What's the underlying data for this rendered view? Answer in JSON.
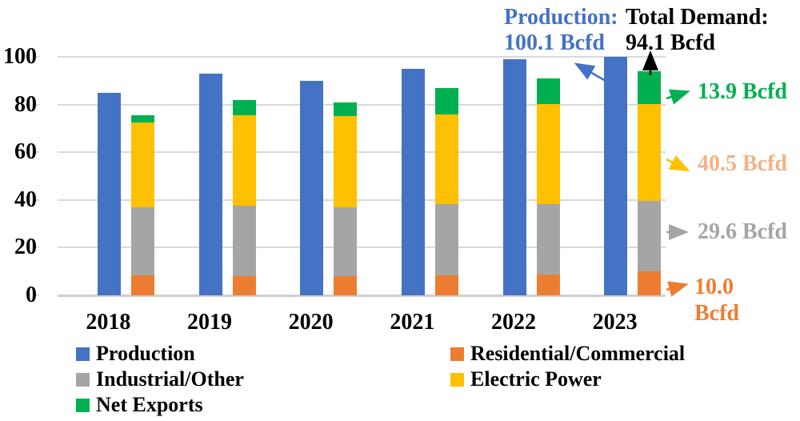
{
  "chart_data": {
    "type": "bar",
    "subtype": "clustered production bar vs stacked demand bar per year",
    "title": "",
    "xlabel": "",
    "ylabel": "",
    "unit": "Bcfd",
    "categories": [
      "2018",
      "2019",
      "2020",
      "2021",
      "2022",
      "2023"
    ],
    "series": [
      {
        "name": "Production",
        "role": "standalone-bar",
        "color": "#4472C4",
        "values": [
          85,
          93,
          90,
          95,
          99,
          100.1
        ]
      },
      {
        "name": "Residential/Commercial",
        "role": "stack-bottom",
        "color": "#ED7D31",
        "values": [
          8.4,
          8.2,
          8.0,
          8.5,
          8.7,
          10.0
        ]
      },
      {
        "name": "Industrial/Other",
        "role": "stack",
        "color": "#A5A5A5",
        "values": [
          28.5,
          29.3,
          28.9,
          29.9,
          29.7,
          29.6
        ]
      },
      {
        "name": "Electric Power",
        "role": "stack",
        "color": "#FFC000",
        "values": [
          35.6,
          38.0,
          38.2,
          37.3,
          41.8,
          40.5
        ]
      },
      {
        "name": "Net Exports",
        "role": "stack-top",
        "color": "#00B050",
        "values": [
          2.9,
          6.5,
          5.9,
          11.2,
          10.8,
          13.9
        ]
      }
    ],
    "ylim": [
      0,
      100
    ],
    "yticks": [
      "0",
      "20",
      "40",
      "60",
      "80",
      "100"
    ],
    "grid": "horizontal",
    "legend_position": "bottom-two-columns"
  },
  "annotations": {
    "production": {
      "line1": "Production:",
      "line2": "100.1 Bcfd",
      "color": "#4472C4"
    },
    "total_demand": {
      "line1": "Total Demand:",
      "line2": "94.1 Bcfd",
      "color": "#000000"
    },
    "net_exports": {
      "text": "13.9 Bcfd",
      "color": "#00B050",
      "arrow_color": "#00B050"
    },
    "electric_power": {
      "text": "40.5 Bcfd",
      "color": "#F4B183",
      "arrow_color": "#FFC000"
    },
    "industrial_other": {
      "text": "29.6 Bcfd",
      "color": "#A5A5A5",
      "arrow_color": "#A5A5A5"
    },
    "residential_commercial": {
      "line1": "10.0",
      "line2": "Bcfd",
      "color": "#ED7D31",
      "arrow_color": "#ED7D31"
    }
  },
  "legend": {
    "items": [
      {
        "label": "Production",
        "color": "#4472C4"
      },
      {
        "label": "Residential/Commercial",
        "color": "#ED7D31"
      },
      {
        "label": "Industrial/Other",
        "color": "#A5A5A5"
      },
      {
        "label": "Electric Power",
        "color": "#FFC000"
      },
      {
        "label": "Net Exports",
        "color": "#00B050"
      }
    ]
  }
}
